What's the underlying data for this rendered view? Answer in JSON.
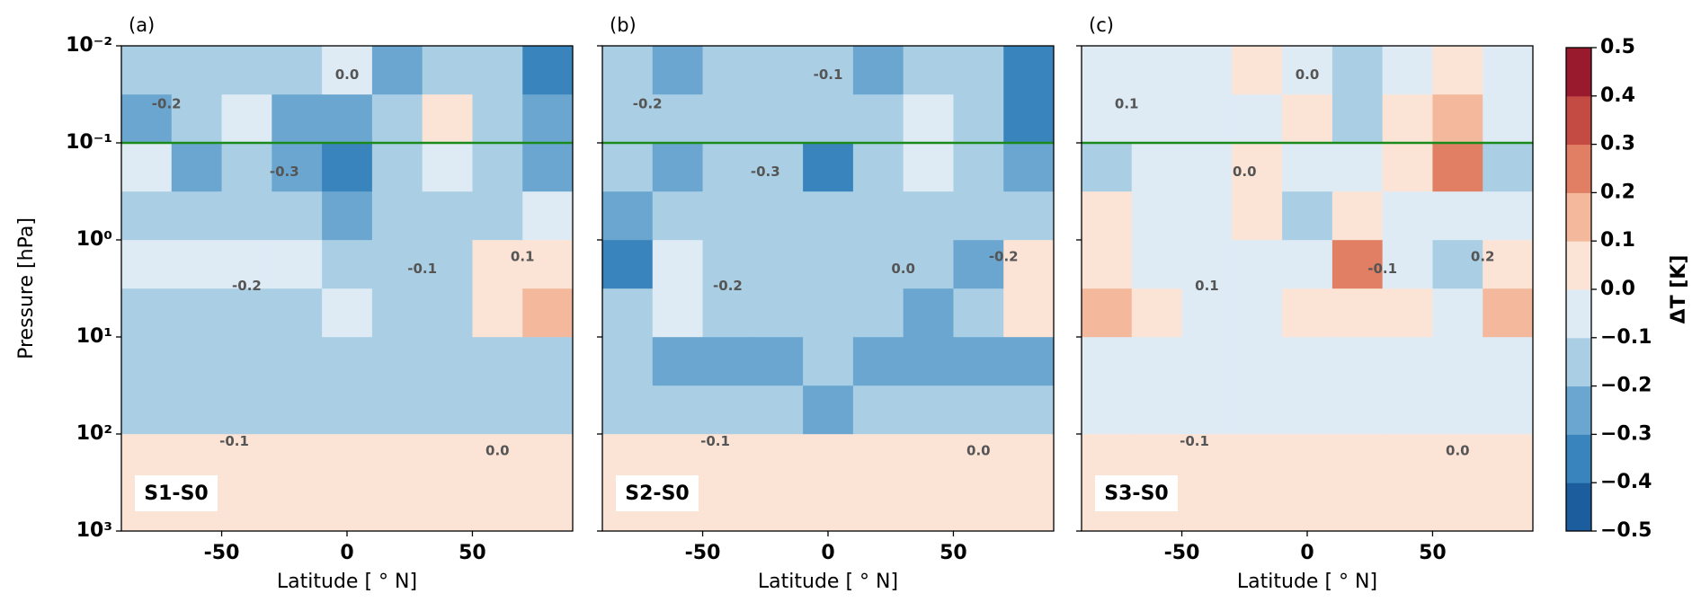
{
  "chart_data": {
    "type": "contour",
    "xlabel": "Latitude [ ° N]",
    "ylabel": "Pressure [hPa]",
    "xlim": [
      -90,
      90
    ],
    "xticks": [
      -50,
      0,
      50
    ],
    "ylim": [
      1000,
      0.01
    ],
    "yscale": "log",
    "yticks": [
      {
        "value": 0.01,
        "label": "10⁻²"
      },
      {
        "value": 0.1,
        "label": "10⁻¹"
      },
      {
        "value": 1,
        "label": "10⁰"
      },
      {
        "value": 10,
        "label": "10¹"
      },
      {
        "value": 100,
        "label": "10²"
      },
      {
        "value": 1000,
        "label": "10³"
      }
    ],
    "x": [
      -80,
      -60,
      -40,
      -20,
      0,
      20,
      40,
      60,
      80
    ],
    "y": [
      0.018,
      0.056,
      0.18,
      0.56,
      1.8,
      5.6,
      18,
      56,
      180,
      560
    ],
    "hline": {
      "value": 0.1,
      "color": "#1a8a1a"
    },
    "colorbar": {
      "label": "ΔT  [K]",
      "boundaries": [
        -0.5,
        -0.4,
        -0.3,
        -0.2,
        -0.1,
        0,
        0.1,
        0.2,
        0.3,
        0.4,
        0.5
      ],
      "colors": [
        "#1c5d9e",
        "#3a84bd",
        "#6ba6d0",
        "#aacfe5",
        "#deebf5",
        "#fbe4d6",
        "#f4b99c",
        "#e07f63",
        "#c44a44",
        "#9a1a2d"
      ],
      "ticks": [
        {
          "value": 0.5,
          "label": "0.5"
        },
        {
          "value": 0.4,
          "label": "0.4"
        },
        {
          "value": 0.3,
          "label": "0.3"
        },
        {
          "value": 0.2,
          "label": "0.2"
        },
        {
          "value": 0.1,
          "label": "0.1"
        },
        {
          "value": 0,
          "label": "0.0"
        },
        {
          "value": -0.1,
          "label": "−0.1"
        },
        {
          "value": -0.2,
          "label": "−0.2"
        },
        {
          "value": -0.3,
          "label": "−0.3"
        },
        {
          "value": -0.4,
          "label": "−0.4"
        },
        {
          "value": -0.5,
          "label": "−0.5"
        }
      ]
    },
    "panels": [
      {
        "label": "(a)",
        "annotation": "S1-S0",
        "contour_labels": [
          "-0.2",
          "-0.3",
          "0.0",
          "-0.1",
          "-0.2",
          "0.1",
          "-0.1",
          "0.0"
        ],
        "z": [
          [
            -0.15,
            -0.12,
            -0.18,
            -0.15,
            -0.05,
            -0.25,
            -0.15,
            -0.12,
            -0.35
          ],
          [
            -0.25,
            -0.15,
            -0.05,
            -0.22,
            -0.28,
            -0.15,
            0.02,
            -0.12,
            -0.3
          ],
          [
            -0.05,
            -0.22,
            -0.15,
            -0.22,
            -0.32,
            -0.15,
            -0.05,
            -0.12,
            -0.22
          ],
          [
            -0.12,
            -0.2,
            -0.15,
            -0.12,
            -0.22,
            -0.15,
            -0.15,
            -0.12,
            -0.05
          ],
          [
            -0.05,
            -0.05,
            -0.05,
            -0.05,
            -0.12,
            -0.18,
            -0.15,
            0.05,
            0.08
          ],
          [
            -0.12,
            -0.15,
            -0.15,
            -0.15,
            -0.05,
            -0.15,
            -0.15,
            0.05,
            0.12
          ],
          [
            -0.15,
            -0.15,
            -0.15,
            -0.15,
            -0.15,
            -0.15,
            -0.15,
            -0.15,
            -0.15
          ],
          [
            -0.15,
            -0.15,
            -0.15,
            -0.15,
            -0.15,
            -0.15,
            -0.15,
            -0.15,
            -0.15
          ],
          [
            0.05,
            0.05,
            0.05,
            0.05,
            0.05,
            0.05,
            0.05,
            0.05,
            0.05
          ],
          [
            0.05,
            0.05,
            0.05,
            0.05,
            0.05,
            0.05,
            0.05,
            0.05,
            0.05
          ]
        ]
      },
      {
        "label": "(b)",
        "annotation": "S2-S0",
        "contour_labels": [
          "-0.2",
          "-0.3",
          "-0.1",
          "0.0",
          "-0.2",
          "-0.2",
          "-0.1",
          "0.0"
        ],
        "z": [
          [
            -0.15,
            -0.25,
            -0.15,
            -0.12,
            -0.12,
            -0.22,
            -0.15,
            -0.15,
            -0.35
          ],
          [
            -0.15,
            -0.12,
            -0.12,
            -0.12,
            -0.12,
            -0.15,
            -0.05,
            -0.15,
            -0.35
          ],
          [
            -0.15,
            -0.22,
            -0.15,
            -0.12,
            -0.32,
            -0.15,
            -0.05,
            -0.15,
            -0.25
          ],
          [
            -0.3,
            -0.2,
            -0.12,
            -0.12,
            -0.12,
            -0.15,
            -0.12,
            -0.15,
            -0.12
          ],
          [
            -0.35,
            -0.05,
            -0.12,
            -0.12,
            -0.12,
            -0.15,
            -0.2,
            -0.22,
            0.05
          ],
          [
            -0.15,
            -0.05,
            -0.12,
            -0.12,
            -0.15,
            -0.2,
            -0.22,
            -0.15,
            0.08
          ],
          [
            -0.15,
            -0.22,
            -0.25,
            -0.22,
            -0.2,
            -0.22,
            -0.22,
            -0.25,
            -0.22
          ],
          [
            -0.15,
            -0.15,
            -0.15,
            -0.15,
            -0.22,
            -0.15,
            -0.15,
            -0.15,
            -0.15
          ],
          [
            0.05,
            0.05,
            0.05,
            0.05,
            0.05,
            0.05,
            0.05,
            0.05,
            0.05
          ],
          [
            0.05,
            0.05,
            0.05,
            0.05,
            0.05,
            0.05,
            0.05,
            0.05,
            0.05
          ]
        ]
      },
      {
        "label": "(c)",
        "annotation": "S3-S0",
        "contour_labels": [
          "0.1",
          "0.0",
          "0.0",
          "-0.1",
          "0.1",
          "0.2",
          "-0.1",
          "0.0"
        ],
        "z": [
          [
            -0.05,
            -0.05,
            -0.05,
            0.05,
            -0.05,
            -0.15,
            -0.05,
            0.05,
            -0.05
          ],
          [
            -0.05,
            -0.05,
            -0.05,
            -0.05,
            0.05,
            -0.15,
            0.05,
            0.15,
            -0.05
          ],
          [
            -0.15,
            -0.05,
            -0.05,
            0.05,
            -0.05,
            -0.05,
            0.05,
            0.25,
            -0.15
          ],
          [
            0.05,
            -0.05,
            -0.05,
            0.05,
            -0.15,
            0.05,
            -0.05,
            -0.05,
            -0.05
          ],
          [
            0.05,
            -0.05,
            -0.05,
            -0.05,
            -0.05,
            0.25,
            -0.05,
            -0.15,
            0.05
          ],
          [
            0.15,
            0.05,
            -0.05,
            -0.05,
            0.05,
            0.05,
            0.05,
            -0.05,
            0.15
          ],
          [
            -0.05,
            -0.05,
            -0.05,
            -0.05,
            -0.05,
            -0.05,
            -0.05,
            -0.05,
            -0.05
          ],
          [
            -0.05,
            -0.05,
            -0.05,
            -0.05,
            -0.05,
            -0.05,
            -0.05,
            -0.05,
            -0.05
          ],
          [
            0.05,
            0.05,
            0.05,
            0.05,
            0.05,
            0.05,
            0.05,
            0.05,
            0.05
          ],
          [
            0.05,
            0.05,
            0.05,
            0.05,
            0.05,
            0.05,
            0.05,
            0.05,
            0.05
          ]
        ]
      }
    ]
  }
}
